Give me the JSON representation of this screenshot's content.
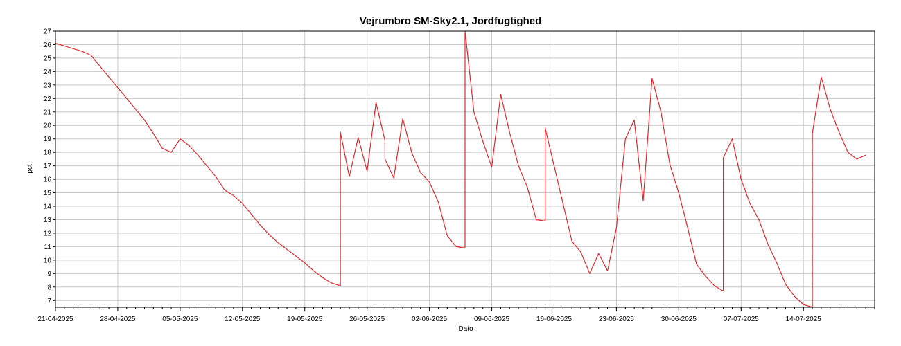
{
  "chart_data": {
    "type": "line",
    "title": "Vejrumbro SM-Sky2.1, Jordfugtighed",
    "xlabel": "Dato",
    "ylabel": "pct",
    "ylim": [
      6.5,
      27
    ],
    "yticks": [
      7,
      8,
      9,
      10,
      11,
      12,
      13,
      14,
      15,
      16,
      17,
      18,
      19,
      20,
      21,
      22,
      23,
      24,
      25,
      26,
      27
    ],
    "xrange": [
      "2025-04-21",
      "2025-07-22"
    ],
    "xticks": [
      "21-04-2025",
      "28-04-2025",
      "05-05-2025",
      "12-05-2025",
      "19-05-2025",
      "26-05-2025",
      "02-06-2025",
      "09-06-2025",
      "16-06-2025",
      "23-06-2025",
      "30-06-2025",
      "07-07-2025",
      "14-07-2025"
    ],
    "grid": true,
    "line_color": "#e8252a",
    "series": [
      {
        "x": [
          "2025-04-21",
          "2025-04-22",
          "2025-04-23",
          "2025-04-24",
          "2025-04-25",
          "2025-04-26",
          "2025-04-27",
          "2025-04-28",
          "2025-04-29",
          "2025-04-30",
          "2025-05-01",
          "2025-05-02",
          "2025-05-03",
          "2025-05-04",
          "2025-05-05",
          "2025-05-06",
          "2025-05-07",
          "2025-05-08",
          "2025-05-09",
          "2025-05-10",
          "2025-05-11",
          "2025-05-12",
          "2025-05-13",
          "2025-05-14",
          "2025-05-15",
          "2025-05-16",
          "2025-05-17",
          "2025-05-18",
          "2025-05-19",
          "2025-05-20",
          "2025-05-21",
          "2025-05-22",
          "2025-05-23",
          "2025-05-23",
          "2025-05-24",
          "2025-05-25",
          "2025-05-26",
          "2025-05-27",
          "2025-05-28",
          "2025-05-28",
          "2025-05-29",
          "2025-05-30",
          "2025-05-31",
          "2025-06-01",
          "2025-06-02",
          "2025-06-03",
          "2025-06-04",
          "2025-06-05",
          "2025-06-06",
          "2025-06-06",
          "2025-06-07",
          "2025-06-08",
          "2025-06-09",
          "2025-06-10",
          "2025-06-11",
          "2025-06-12",
          "2025-06-13",
          "2025-06-14",
          "2025-06-15",
          "2025-06-15",
          "2025-06-16",
          "2025-06-17",
          "2025-06-18",
          "2025-06-19",
          "2025-06-20",
          "2025-06-21",
          "2025-06-22",
          "2025-06-23",
          "2025-06-24",
          "2025-06-25",
          "2025-06-26",
          "2025-06-27",
          "2025-06-28",
          "2025-06-29",
          "2025-06-30",
          "2025-07-01",
          "2025-07-02",
          "2025-07-03",
          "2025-07-04",
          "2025-07-05",
          "2025-07-05",
          "2025-07-06",
          "2025-07-07",
          "2025-07-08",
          "2025-07-09",
          "2025-07-10",
          "2025-07-11",
          "2025-07-12",
          "2025-07-13",
          "2025-07-14",
          "2025-07-15",
          "2025-07-15",
          "2025-07-16",
          "2025-07-17",
          "2025-07-18",
          "2025-07-19",
          "2025-07-20",
          "2025-07-21"
        ],
        "values": [
          26.1,
          25.9,
          25.7,
          25.5,
          25.2,
          24.4,
          23.6,
          22.8,
          22.0,
          21.2,
          20.4,
          19.4,
          18.3,
          18.0,
          19.0,
          18.5,
          17.8,
          17.0,
          16.2,
          15.2,
          14.8,
          14.2,
          13.4,
          12.6,
          11.9,
          11.3,
          10.8,
          10.3,
          9.8,
          9.2,
          8.7,
          8.3,
          8.1,
          19.5,
          16.2,
          19.1,
          16.6,
          21.7,
          18.9,
          17.5,
          16.1,
          20.5,
          18.0,
          16.5,
          15.8,
          14.3,
          11.8,
          11.0,
          10.9,
          27.0,
          21.0,
          18.8,
          16.9,
          22.3,
          19.5,
          17.0,
          15.4,
          13.0,
          12.9,
          19.8,
          17.0,
          14.2,
          11.4,
          10.6,
          9.0,
          10.5,
          9.2,
          12.4,
          19.0,
          20.4,
          14.4,
          23.5,
          21.0,
          17.1,
          15.0,
          12.4,
          9.7,
          8.8,
          8.1,
          7.7,
          17.6,
          19.0,
          16.0,
          14.2,
          13.0,
          11.2,
          9.8,
          8.2,
          7.3,
          6.7,
          6.5,
          19.4,
          23.6,
          21.2,
          19.5,
          18.0,
          17.5,
          17.8
        ]
      }
    ]
  }
}
